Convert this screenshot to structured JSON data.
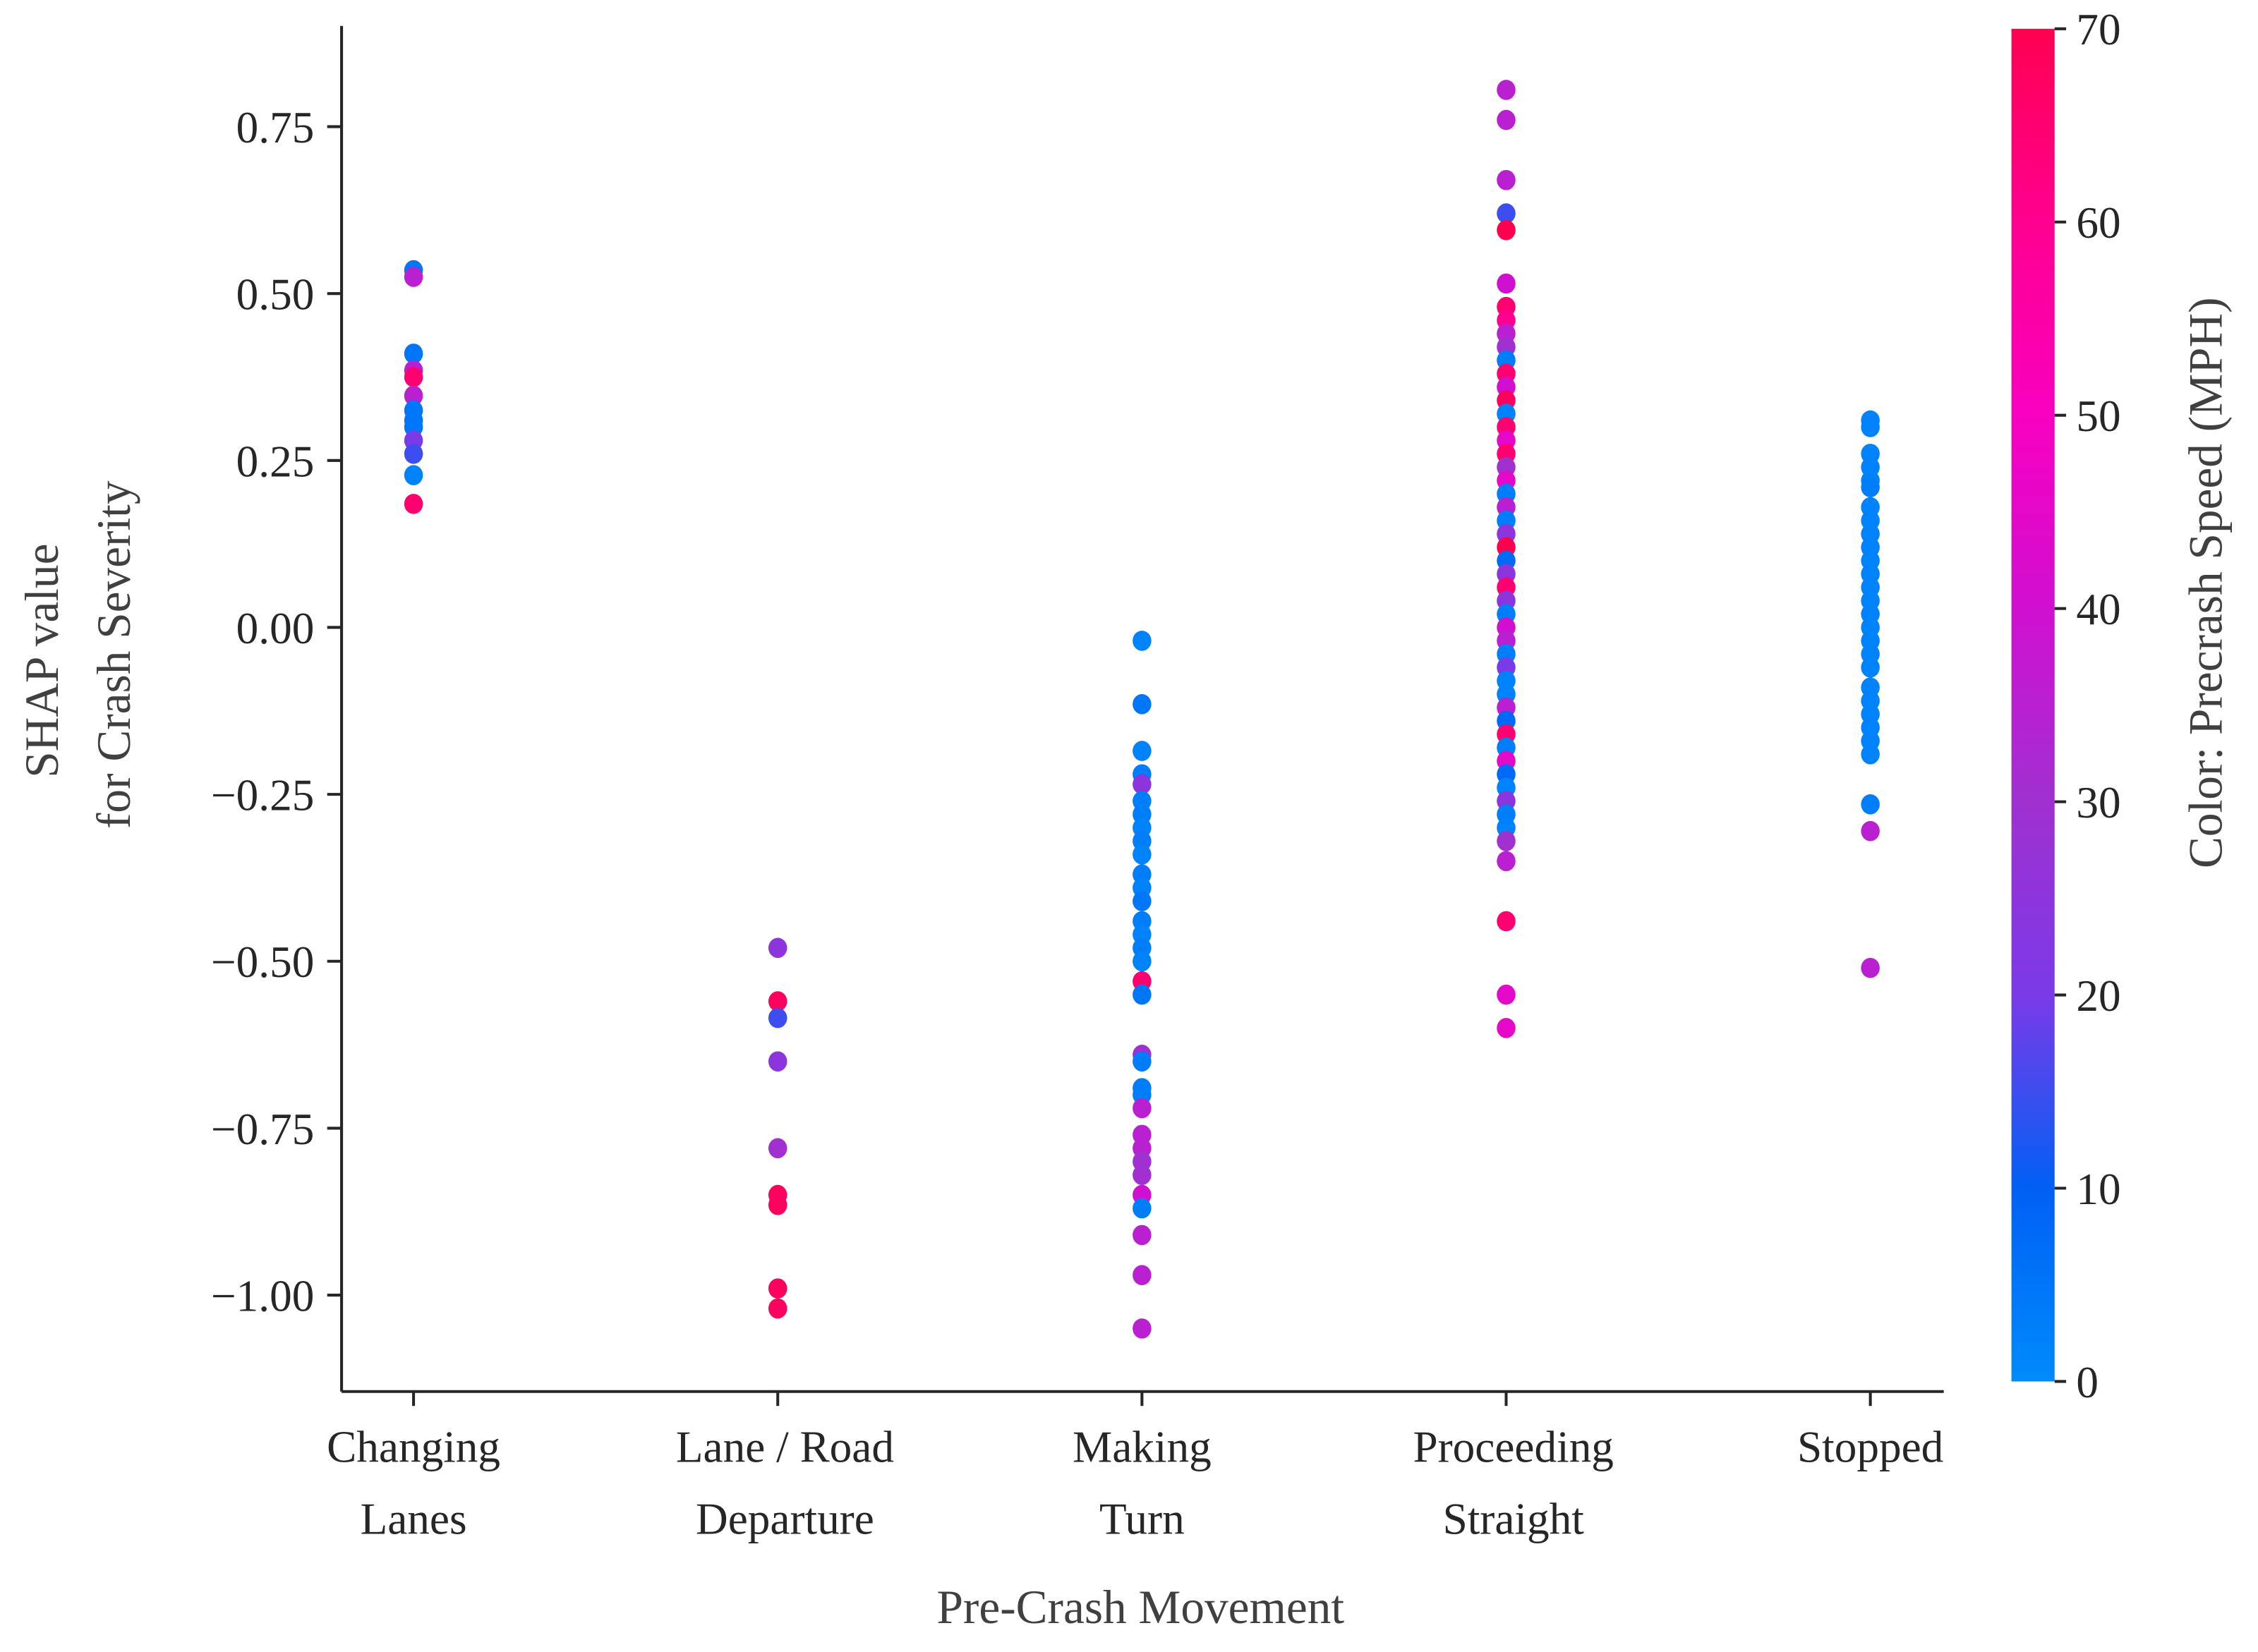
{
  "chart_data": {
    "type": "scatter",
    "xlabel": "Pre-Crash Movement",
    "ylabel_lines": [
      "SHAP value",
      "for Crash Severity"
    ],
    "categories": [
      [
        "Changing",
        "Lanes"
      ],
      [
        "Lane / Road",
        "Departure"
      ],
      [
        "Making",
        "Turn"
      ],
      [
        "Proceeding",
        "Straight"
      ],
      [
        "Stopped"
      ]
    ],
    "yticks": [
      0.75,
      0.5,
      0.25,
      0.0,
      -0.25,
      -0.5,
      -0.75,
      -1.0
    ],
    "ytick_labels": [
      "0.75",
      "0.50",
      "0.25",
      "0.00",
      "−0.25",
      "−0.50",
      "−0.75",
      "−1.00"
    ],
    "ylim": [
      -1.14,
      0.9
    ],
    "grid": false,
    "colorbar": {
      "label": "Color: Precrash Speed (MPH)",
      "range": [
        0,
        70
      ],
      "ticks": [
        "0",
        "10",
        "20",
        "30",
        "40",
        "50",
        "60",
        "70"
      ],
      "colors": [
        "#008bfb",
        "#0060f5",
        "#7a3ae8",
        "#a030d0",
        "#d010d0",
        "#f800c0",
        "#ff0090",
        "#ff0051"
      ]
    },
    "series": [
      {
        "category": "Changing Lanes",
        "points": [
          [
            0.535,
            5
          ],
          [
            0.525,
            35
          ],
          [
            0.41,
            5
          ],
          [
            0.385,
            35
          ],
          [
            0.375,
            65
          ],
          [
            0.347,
            35
          ],
          [
            0.325,
            5
          ],
          [
            0.31,
            5
          ],
          [
            0.3,
            5
          ],
          [
            0.28,
            20
          ],
          [
            0.26,
            15
          ],
          [
            0.228,
            2
          ],
          [
            0.185,
            65
          ]
        ]
      },
      {
        "category": "Lane / Road Departure",
        "points": [
          [
            -0.48,
            25
          ],
          [
            -0.56,
            68
          ],
          [
            -0.585,
            15
          ],
          [
            -0.65,
            25
          ],
          [
            -0.78,
            30
          ],
          [
            -0.85,
            68
          ],
          [
            -0.865,
            68
          ],
          [
            -0.99,
            68
          ],
          [
            -1.02,
            68
          ]
        ]
      },
      {
        "category": "Making Turn",
        "points": [
          [
            -0.02,
            2
          ],
          [
            -0.115,
            5
          ],
          [
            -0.185,
            2
          ],
          [
            -0.22,
            3
          ],
          [
            -0.235,
            25
          ],
          [
            -0.26,
            3
          ],
          [
            -0.28,
            3
          ],
          [
            -0.3,
            2
          ],
          [
            -0.32,
            3
          ],
          [
            -0.34,
            2
          ],
          [
            -0.37,
            3
          ],
          [
            -0.39,
            2
          ],
          [
            -0.41,
            5
          ],
          [
            -0.44,
            3
          ],
          [
            -0.46,
            2
          ],
          [
            -0.48,
            3
          ],
          [
            -0.5,
            2
          ],
          [
            -0.53,
            65
          ],
          [
            -0.55,
            5
          ],
          [
            -0.64,
            30
          ],
          [
            -0.65,
            3
          ],
          [
            -0.69,
            3
          ],
          [
            -0.7,
            3
          ],
          [
            -0.72,
            35
          ],
          [
            -0.76,
            35
          ],
          [
            -0.78,
            35
          ],
          [
            -0.8,
            30
          ],
          [
            -0.82,
            30
          ],
          [
            -0.85,
            40
          ],
          [
            -0.87,
            3
          ],
          [
            -0.91,
            35
          ],
          [
            -0.97,
            35
          ],
          [
            -1.05,
            35
          ]
        ]
      },
      {
        "category": "Proceeding Straight",
        "points": [
          [
            0.805,
            35
          ],
          [
            0.76,
            35
          ],
          [
            0.67,
            35
          ],
          [
            0.62,
            15
          ],
          [
            0.595,
            70
          ],
          [
            0.515,
            40
          ],
          [
            0.48,
            65
          ],
          [
            0.46,
            60
          ],
          [
            0.44,
            35
          ],
          [
            0.42,
            30
          ],
          [
            0.4,
            3
          ],
          [
            0.38,
            65
          ],
          [
            0.36,
            40
          ],
          [
            0.34,
            68
          ],
          [
            0.32,
            2
          ],
          [
            0.3,
            65
          ],
          [
            0.28,
            45
          ],
          [
            0.26,
            65
          ],
          [
            0.24,
            30
          ],
          [
            0.22,
            45
          ],
          [
            0.2,
            3
          ],
          [
            0.18,
            35
          ],
          [
            0.16,
            3
          ],
          [
            0.14,
            25
          ],
          [
            0.12,
            70
          ],
          [
            0.1,
            8
          ],
          [
            0.08,
            25
          ],
          [
            0.06,
            65
          ],
          [
            0.04,
            25
          ],
          [
            0.02,
            3
          ],
          [
            0.0,
            40
          ],
          [
            -0.02,
            35
          ],
          [
            -0.04,
            3
          ],
          [
            -0.06,
            20
          ],
          [
            -0.08,
            2
          ],
          [
            -0.1,
            2
          ],
          [
            -0.12,
            35
          ],
          [
            -0.14,
            8
          ],
          [
            -0.16,
            65
          ],
          [
            -0.18,
            3
          ],
          [
            -0.2,
            45
          ],
          [
            -0.22,
            8
          ],
          [
            -0.24,
            2
          ],
          [
            -0.26,
            25
          ],
          [
            -0.28,
            3
          ],
          [
            -0.3,
            2
          ],
          [
            -0.32,
            30
          ],
          [
            -0.35,
            35
          ],
          [
            -0.44,
            65
          ],
          [
            -0.55,
            45
          ],
          [
            -0.6,
            45
          ]
        ]
      },
      {
        "category": "Stopped",
        "points": [
          [
            0.31,
            2
          ],
          [
            0.3,
            2
          ],
          [
            0.26,
            2
          ],
          [
            0.24,
            2
          ],
          [
            0.22,
            2
          ],
          [
            0.21,
            3
          ],
          [
            0.18,
            2
          ],
          [
            0.16,
            2
          ],
          [
            0.14,
            2
          ],
          [
            0.12,
            2
          ],
          [
            0.1,
            2
          ],
          [
            0.08,
            2
          ],
          [
            0.06,
            2
          ],
          [
            0.04,
            2
          ],
          [
            0.02,
            2
          ],
          [
            0.0,
            2
          ],
          [
            -0.02,
            2
          ],
          [
            -0.04,
            2
          ],
          [
            -0.06,
            2
          ],
          [
            -0.09,
            2
          ],
          [
            -0.11,
            2
          ],
          [
            -0.13,
            2
          ],
          [
            -0.15,
            2
          ],
          [
            -0.17,
            2
          ],
          [
            -0.19,
            2
          ],
          [
            -0.265,
            3
          ],
          [
            -0.305,
            35
          ],
          [
            -0.51,
            35
          ]
        ]
      }
    ]
  }
}
